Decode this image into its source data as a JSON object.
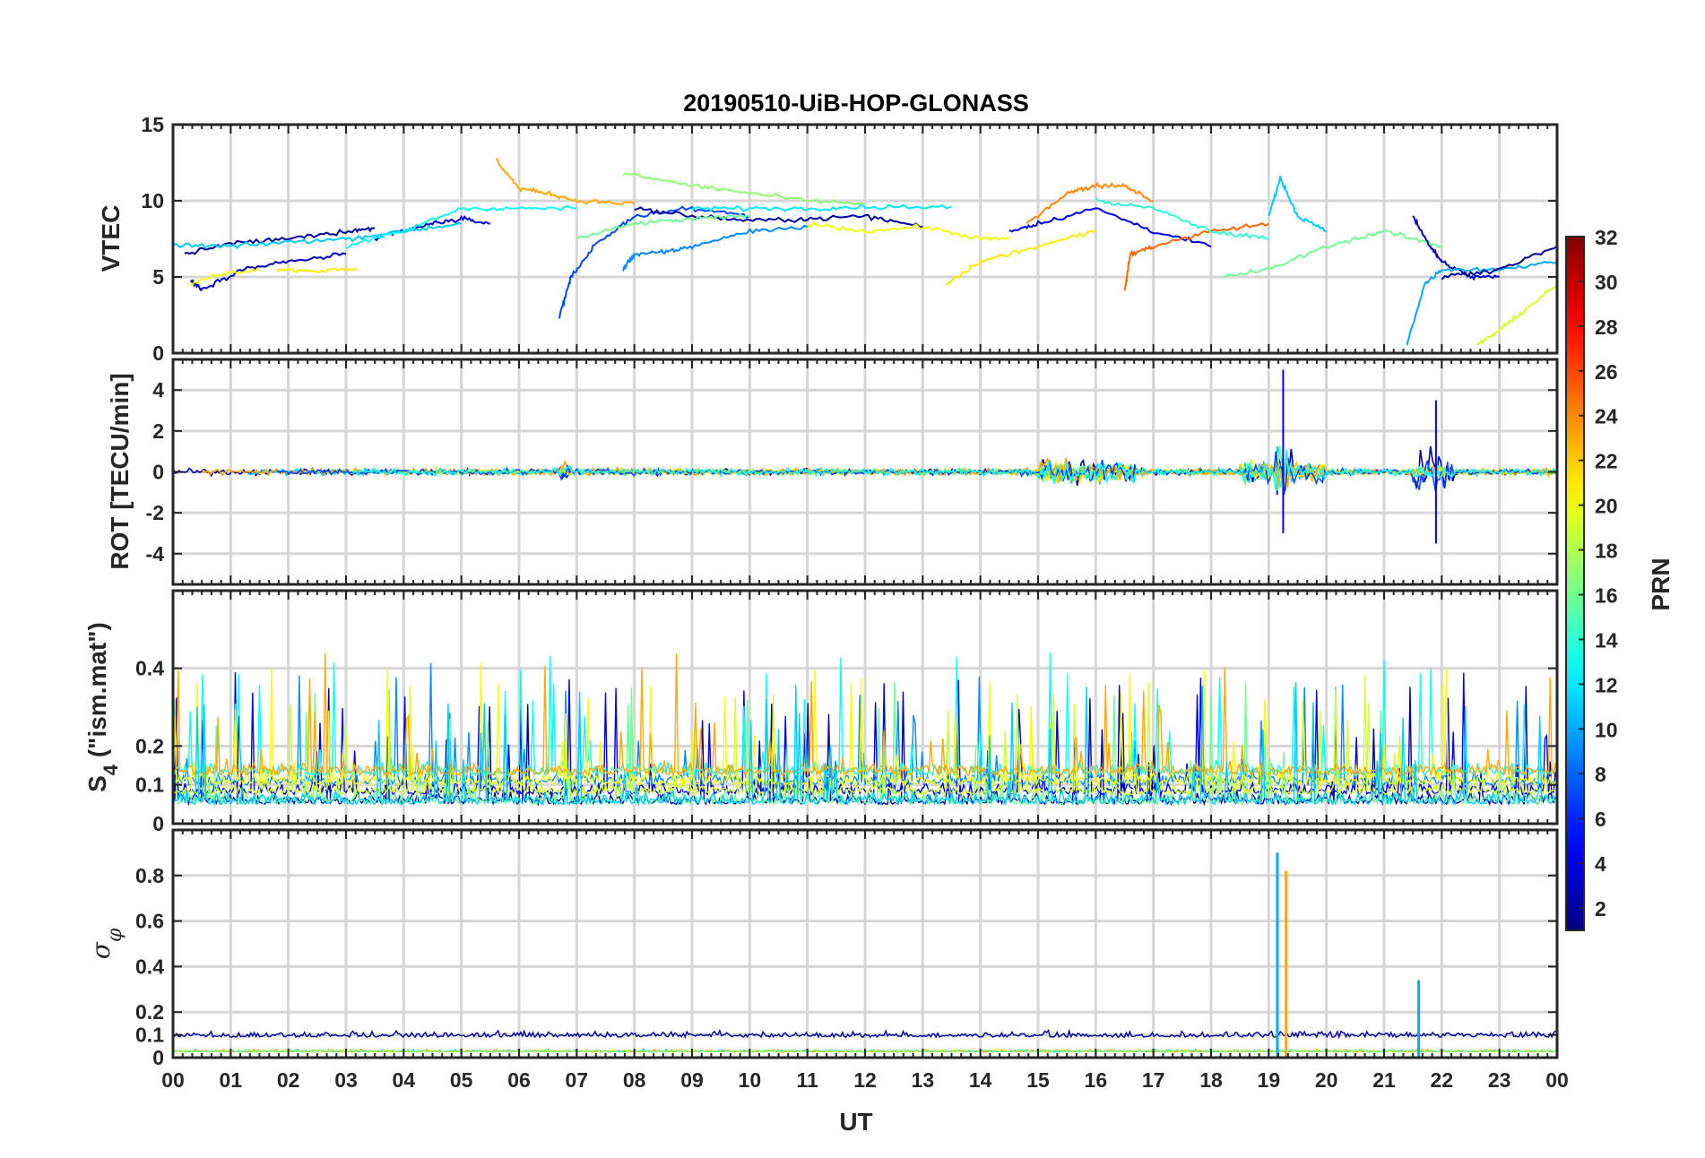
{
  "figure": {
    "title": "20190510-UiB-HOP-GLONASS",
    "xlabel": "UT"
  },
  "colors": {
    "axis": "#262626",
    "grid": "#d6d6d6",
    "jet_colormap": [
      "#00008f",
      "#0000ff",
      "#007fff",
      "#00ffff",
      "#7fff7f",
      "#ffff00",
      "#ff7f00",
      "#ff0000",
      "#7f0000"
    ]
  },
  "chart_data": [
    {
      "type": "line",
      "panel": "vtec",
      "ylabel": "VTEC",
      "xlim": [
        0,
        24
      ],
      "ylim": [
        0,
        15
      ],
      "yticks": [
        0,
        5,
        10,
        15
      ],
      "grid": true,
      "series_color_by": "PRN",
      "series": [
        {
          "prn": 2,
          "x": [
            0.2,
            1,
            2,
            3,
            3.5
          ],
          "y": [
            6.5,
            7.2,
            7.5,
            8,
            8.2
          ]
        },
        {
          "prn": 3,
          "x": [
            0.3,
            0.5,
            1.2,
            2,
            3
          ],
          "y": [
            4.8,
            4.2,
            5.5,
            6,
            6.5
          ]
        },
        {
          "prn": 4,
          "x": [
            3.5,
            4,
            4.5,
            5,
            5.5
          ],
          "y": [
            7.5,
            8,
            8.5,
            8.8,
            8.5
          ]
        },
        {
          "prn": 7,
          "x": [
            6.7,
            6.9,
            7.3,
            8,
            9,
            10
          ],
          "y": [
            2.4,
            5,
            7,
            9,
            9.5,
            9
          ]
        },
        {
          "prn": 9,
          "x": [
            7.8,
            8,
            8.5,
            9,
            10,
            11
          ],
          "y": [
            5.5,
            6.5,
            6.6,
            7,
            8,
            8.3
          ]
        },
        {
          "prn": 2,
          "x": [
            8,
            9,
            10,
            11,
            12,
            13
          ],
          "y": [
            9.5,
            9,
            8.7,
            8.8,
            9,
            8.3
          ]
        },
        {
          "prn": 4,
          "x": [
            14.5,
            15,
            16,
            17,
            18
          ],
          "y": [
            8,
            8.5,
            9.5,
            8,
            7
          ]
        },
        {
          "prn": 11,
          "x": [
            0,
            1,
            2,
            3,
            4,
            5
          ],
          "y": [
            7.1,
            7,
            7.3,
            7.5,
            8,
            8.5
          ]
        },
        {
          "prn": 13,
          "x": [
            3,
            4,
            5,
            6,
            7
          ],
          "y": [
            7,
            8,
            9.5,
            9.5,
            9.5
          ]
        },
        {
          "prn": 12,
          "x": [
            9,
            10,
            11,
            12,
            13.5
          ],
          "y": [
            9.5,
            9.5,
            9.5,
            9.6,
            9.6
          ]
        },
        {
          "prn": 20,
          "x": [
            0.3,
            0.8,
            1.5
          ],
          "y": [
            4.5,
            5.2,
            5.5
          ]
        },
        {
          "prn": 21,
          "x": [
            1.8,
            2.5,
            3.2
          ],
          "y": [
            5.5,
            5.4,
            5.5
          ]
        },
        {
          "prn": 23,
          "x": [
            5.6,
            6,
            6.5,
            7,
            8
          ],
          "y": [
            12.7,
            10.8,
            10.5,
            10,
            9.8
          ]
        },
        {
          "prn": 17,
          "x": [
            7.8,
            9,
            10,
            11,
            12
          ],
          "y": [
            11.8,
            11,
            10.5,
            10,
            9.8
          ]
        },
        {
          "prn": 16,
          "x": [
            7,
            8,
            9,
            10
          ],
          "y": [
            7.5,
            8.5,
            8.8,
            9
          ]
        },
        {
          "prn": 20,
          "x": [
            11,
            12,
            13,
            14,
            14.5
          ],
          "y": [
            8.5,
            8,
            8.3,
            7.5,
            7.5
          ]
        },
        {
          "prn": 21,
          "x": [
            13.4,
            14,
            15,
            16
          ],
          "y": [
            4.5,
            6,
            7,
            8
          ]
        },
        {
          "prn": 24,
          "x": [
            14.8,
            15.5,
            16,
            16.5,
            17
          ],
          "y": [
            8.5,
            10.5,
            11,
            11,
            10
          ]
        },
        {
          "prn": 25,
          "x": [
            16.5,
            16.6,
            17,
            18,
            19
          ],
          "y": [
            4,
            6.5,
            7,
            8,
            8.5
          ]
        },
        {
          "prn": 14,
          "x": [
            16,
            17,
            18,
            19
          ],
          "y": [
            10,
            9.5,
            8,
            7.5
          ]
        },
        {
          "prn": 11,
          "x": [
            19,
            19.2,
            19.5,
            20
          ],
          "y": [
            9,
            11.5,
            9,
            8
          ]
        },
        {
          "prn": 16,
          "x": [
            18.2,
            19,
            20,
            21,
            22
          ],
          "y": [
            5,
            5.5,
            7,
            8,
            7
          ]
        },
        {
          "prn": 3,
          "x": [
            21.5,
            21.8,
            22,
            22.5,
            23
          ],
          "y": [
            9,
            7,
            6,
            5,
            5
          ]
        },
        {
          "prn": 10,
          "x": [
            21.4,
            21.7,
            22,
            23,
            24
          ],
          "y": [
            0.6,
            4.5,
            5.5,
            5.5,
            6
          ]
        },
        {
          "prn": 2,
          "x": [
            22,
            23,
            24
          ],
          "y": [
            5,
            5.5,
            7
          ]
        },
        {
          "prn": 19,
          "x": [
            22.6,
            23,
            23.5,
            24
          ],
          "y": [
            0.5,
            1.5,
            3,
            4.5
          ]
        }
      ]
    },
    {
      "type": "line",
      "panel": "rot",
      "ylabel": "ROT [TECU/min]",
      "xlim": [
        0,
        24
      ],
      "ylim": [
        -5.5,
        5.5
      ],
      "yticks": [
        -4,
        -2,
        0,
        2,
        4
      ],
      "grid": true,
      "series_color_by": "PRN",
      "features": [
        {
          "x": 19.25,
          "y_min": -3,
          "y_max": 5
        },
        {
          "x": 21.9,
          "y_min": -3.5,
          "y_max": 3.5
        }
      ]
    },
    {
      "type": "line",
      "panel": "s4",
      "ylabel_main": "S",
      "ylabel_sub": "4",
      "ylabel_rest": " (\"ism.mat\")",
      "xlim": [
        0,
        24
      ],
      "ylim": [
        0,
        0.6
      ],
      "yticks": [
        0,
        0.1,
        0.2,
        0.4
      ],
      "grid": true,
      "series_color_by": "PRN"
    },
    {
      "type": "line",
      "panel": "sigma_phi",
      "ylabel_main": "σ",
      "ylabel_sub": "φ",
      "xlim": [
        0,
        24
      ],
      "ylim": [
        0,
        1
      ],
      "yticks": [
        0,
        0.1,
        0.2,
        0.4,
        0.6,
        0.8
      ],
      "grid": true,
      "series_color_by": "PRN",
      "features": [
        {
          "x": 19.15,
          "y_max": 0.9
        },
        {
          "x": 19.3,
          "y_max": 0.82
        },
        {
          "x": 21.6,
          "y_max": 0.34
        }
      ]
    }
  ],
  "xaxis": {
    "ticks": [
      "00",
      "01",
      "02",
      "03",
      "04",
      "05",
      "06",
      "07",
      "08",
      "09",
      "10",
      "11",
      "12",
      "13",
      "14",
      "15",
      "16",
      "17",
      "18",
      "19",
      "20",
      "21",
      "22",
      "23",
      "00"
    ]
  },
  "colorbar": {
    "label": "PRN",
    "range": [
      1,
      32
    ],
    "ticks": [
      "2",
      "4",
      "6",
      "8",
      "10",
      "12",
      "14",
      "16",
      "18",
      "20",
      "22",
      "24",
      "26",
      "28",
      "30",
      "32"
    ],
    "tick_values": [
      2,
      4,
      6,
      8,
      10,
      12,
      14,
      16,
      18,
      20,
      22,
      24,
      26,
      28,
      30,
      32
    ]
  }
}
